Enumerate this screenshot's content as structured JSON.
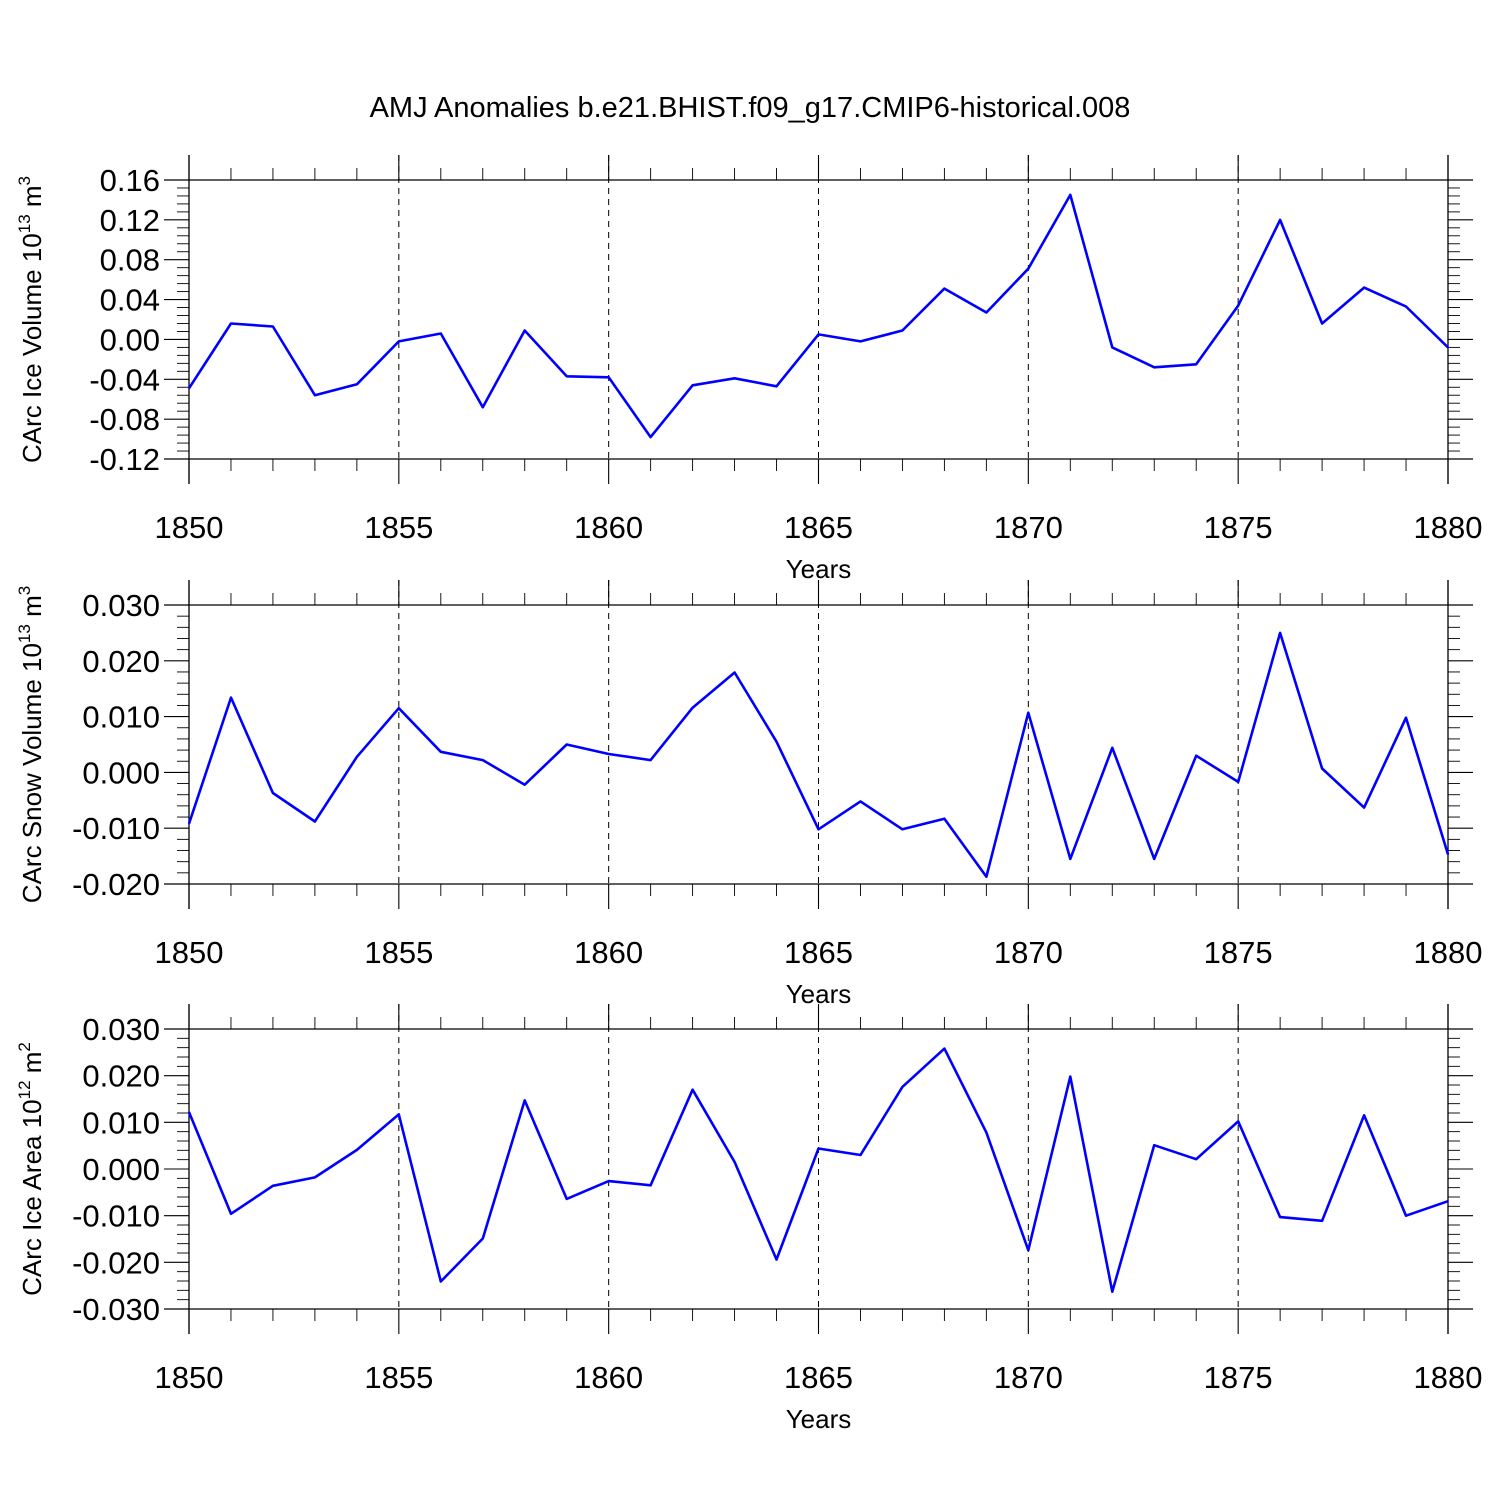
{
  "figure_title": "AMJ Anomalies b.e21.BHIST.f09_g17.CMIP6-historical.008",
  "colors": {
    "line": "#0000ff",
    "axis": "#000000",
    "background": "#ffffff"
  },
  "chart_data": [
    {
      "type": "line",
      "id": "ice-volume",
      "ylabel": "CArc Ice Volume 10",
      "ylabel_exp": "13",
      "ylabel_unit": " m",
      "ylabel_unit_exp": "3",
      "xlabel": "Years",
      "xlim": [
        1850,
        1880
      ],
      "ylim": [
        -0.12,
        0.16
      ],
      "x_ticks": [
        1850,
        1855,
        1860,
        1865,
        1870,
        1875,
        1880
      ],
      "x_tick_labels": [
        "1850",
        "1855",
        "1860",
        "1865",
        "1870",
        "1875",
        "1880"
      ],
      "y_ticks": [
        -0.12,
        -0.08,
        -0.04,
        0.0,
        0.04,
        0.08,
        0.12,
        0.16
      ],
      "y_tick_labels": [
        "-0.12",
        "-0.08",
        "-0.04",
        "0.00",
        "0.04",
        "0.08",
        "0.12",
        "0.16"
      ],
      "y_minor_step": 0.008,
      "x_grid": [
        1855,
        1860,
        1865,
        1870,
        1875
      ],
      "x": [
        1850,
        1851,
        1852,
        1853,
        1854,
        1855,
        1856,
        1857,
        1858,
        1859,
        1860,
        1861,
        1862,
        1863,
        1864,
        1865,
        1866,
        1867,
        1868,
        1869,
        1870,
        1871,
        1872,
        1873,
        1874,
        1875,
        1876,
        1877,
        1878,
        1879,
        1880
      ],
      "y": [
        -0.049,
        0.016,
        0.013,
        -0.056,
        -0.045,
        -0.002,
        0.006,
        -0.068,
        0.009,
        -0.037,
        -0.038,
        -0.098,
        -0.046,
        -0.039,
        -0.047,
        0.005,
        -0.002,
        0.009,
        0.051,
        0.027,
        0.071,
        0.145,
        -0.008,
        -0.028,
        -0.025,
        0.034,
        0.12,
        0.016,
        0.052,
        0.033,
        -0.008
      ]
    },
    {
      "type": "line",
      "id": "snow-volume",
      "ylabel": "CArc Snow Volume 10",
      "ylabel_exp": "13",
      "ylabel_unit": " m",
      "ylabel_unit_exp": "3",
      "xlabel": "Years",
      "xlim": [
        1850,
        1880
      ],
      "ylim": [
        -0.02,
        0.03
      ],
      "x_ticks": [
        1850,
        1855,
        1860,
        1865,
        1870,
        1875,
        1880
      ],
      "x_tick_labels": [
        "1850",
        "1855",
        "1860",
        "1865",
        "1870",
        "1875",
        "1880"
      ],
      "y_ticks": [
        -0.02,
        -0.01,
        0.0,
        0.01,
        0.02,
        0.03
      ],
      "y_tick_labels": [
        "-0.020",
        "-0.010",
        "0.000",
        "0.010",
        "0.020",
        "0.030"
      ],
      "y_minor_step": 0.002,
      "x_grid": [
        1855,
        1860,
        1865,
        1870,
        1875
      ],
      "x": [
        1850,
        1851,
        1852,
        1853,
        1854,
        1855,
        1856,
        1857,
        1858,
        1859,
        1860,
        1861,
        1862,
        1863,
        1864,
        1865,
        1866,
        1867,
        1868,
        1869,
        1870,
        1871,
        1872,
        1873,
        1874,
        1875,
        1876,
        1877,
        1878,
        1879,
        1880
      ],
      "y": [
        -0.0092,
        0.0134,
        -0.0037,
        -0.0088,
        0.0028,
        0.0115,
        0.0037,
        0.0022,
        -0.0022,
        0.005,
        0.0033,
        0.0022,
        0.0116,
        0.0179,
        0.0055,
        -0.0102,
        -0.0052,
        -0.0102,
        -0.0083,
        -0.0187,
        0.0107,
        -0.0155,
        0.0044,
        -0.0155,
        0.003,
        -0.0017,
        0.025,
        0.0007,
        -0.0063,
        0.0098,
        -0.0147
      ]
    },
    {
      "type": "line",
      "id": "ice-area",
      "ylabel": "CArc Ice Area 10",
      "ylabel_exp": "12",
      "ylabel_unit": " m",
      "ylabel_unit_exp": "2",
      "xlabel": "Years",
      "xlim": [
        1850,
        1880
      ],
      "ylim": [
        -0.03,
        0.03
      ],
      "x_ticks": [
        1850,
        1855,
        1860,
        1865,
        1870,
        1875,
        1880
      ],
      "x_tick_labels": [
        "1850",
        "1855",
        "1860",
        "1865",
        "1870",
        "1875",
        "1880"
      ],
      "y_ticks": [
        -0.03,
        -0.02,
        -0.01,
        0.0,
        0.01,
        0.02,
        0.03
      ],
      "y_tick_labels": [
        "-0.030",
        "-0.020",
        "-0.010",
        "0.000",
        "0.010",
        "0.020",
        "0.030"
      ],
      "y_minor_step": 0.002,
      "x_grid": [
        1855,
        1860,
        1865,
        1870,
        1875
      ],
      "x": [
        1850,
        1851,
        1852,
        1853,
        1854,
        1855,
        1856,
        1857,
        1858,
        1859,
        1860,
        1861,
        1862,
        1863,
        1864,
        1865,
        1866,
        1867,
        1868,
        1869,
        1870,
        1871,
        1872,
        1873,
        1874,
        1875,
        1876,
        1877,
        1878,
        1879,
        1880
      ],
      "y": [
        0.0122,
        -0.0096,
        -0.0036,
        -0.0018,
        0.0041,
        0.0117,
        -0.0241,
        -0.0149,
        0.0147,
        -0.0064,
        -0.0026,
        -0.0035,
        0.017,
        0.0015,
        -0.0194,
        0.0044,
        0.003,
        0.0176,
        0.0258,
        0.0078,
        -0.0174,
        0.0198,
        -0.0263,
        0.0051,
        0.0021,
        0.0102,
        -0.0103,
        -0.0111,
        0.0115,
        -0.01,
        -0.0069
      ]
    }
  ]
}
